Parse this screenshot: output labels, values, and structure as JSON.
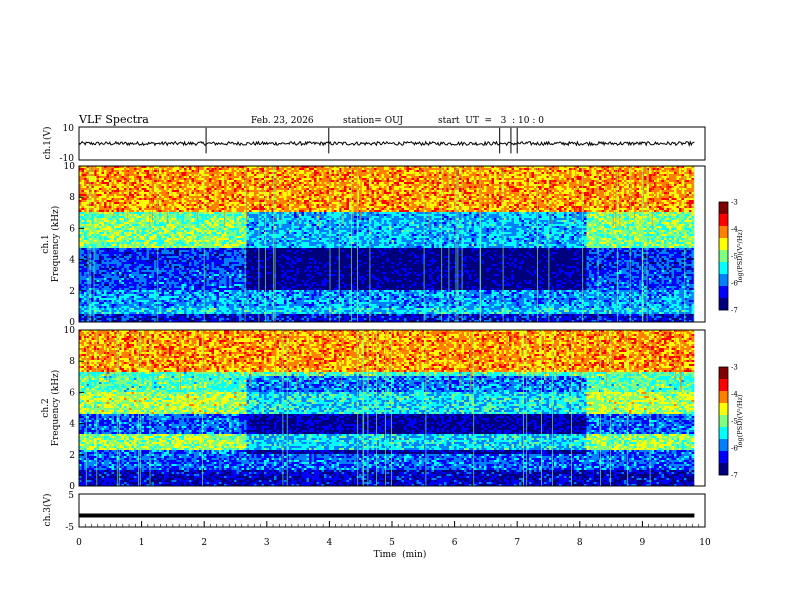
{
  "header": {
    "title": "VLF Spectra",
    "date": "Feb. 23, 2026",
    "station": "station= OUJ",
    "start": "start  UT  =   3  : 10 : 0"
  },
  "colors": {
    "spectrogram_colormap": [
      "#00007f",
      "#0000ff",
      "#007fff",
      "#00ffff",
      "#7fff7f",
      "#ffff00",
      "#ff7f00",
      "#ff0000",
      "#7f0000"
    ],
    "trace": "#000000"
  },
  "chart_data": [
    {
      "type": "line",
      "panel": "ch1-waveform",
      "ylabel": "ch.1(V)",
      "ylim": [
        -10,
        10
      ],
      "yticks": [
        "10",
        "-10"
      ],
      "xlim": [
        0,
        10
      ],
      "x": [
        0,
        1,
        2,
        3,
        4,
        5,
        6,
        7,
        8,
        9,
        9.83
      ],
      "y": [
        0,
        0,
        0,
        0,
        0,
        0,
        0,
        0,
        0,
        0,
        0
      ],
      "spike_times_min": [
        2.03,
        3.99,
        6.72,
        6.9,
        7.0
      ]
    },
    {
      "type": "heatmap",
      "panel": "ch1-spectrogram",
      "ylabel_line1": "ch.1",
      "ylabel_line2": "Frequency (kHz)",
      "ylim": [
        0,
        10
      ],
      "yticks": [
        "0",
        "2",
        "4",
        "6",
        "8",
        "10"
      ],
      "xlim": [
        0,
        10
      ],
      "data_end_min": 9.83,
      "segment_times_min": [
        0,
        2.67,
        8.1,
        9.83
      ],
      "colorbar": {
        "label": "log(PSD)(V²/Hz)",
        "range": [
          -7,
          -3
        ],
        "ticks": [
          "-3",
          "-4",
          "-5",
          "-6",
          "-7"
        ]
      },
      "bands_kHz": [
        {
          "f_low": 0,
          "f_high": 0.5,
          "level": -6.4
        },
        {
          "f_low": 0.5,
          "f_high": 0.9,
          "level": -5.6
        },
        {
          "f_low": 0.9,
          "f_high": 2.0,
          "level": -5.8
        },
        {
          "f_low": 2.0,
          "f_high": 3.3,
          "level": -6.1
        },
        {
          "f_low": 3.3,
          "f_high": 4.8,
          "level": -6.2
        },
        {
          "f_low": 4.8,
          "f_high": 7.0,
          "level": -5.0
        },
        {
          "f_low": 7.0,
          "f_high": 10.0,
          "level": -4.2
        }
      ]
    },
    {
      "type": "heatmap",
      "panel": "ch2-spectrogram",
      "ylabel_line1": "ch.2",
      "ylabel_line2": "Frequency (kHz)",
      "ylim": [
        0,
        10
      ],
      "yticks": [
        "0",
        "2",
        "4",
        "6",
        "8",
        "10"
      ],
      "xlim": [
        0,
        10
      ],
      "data_end_min": 9.83,
      "segment_times_min": [
        0,
        2.67,
        8.1,
        9.83
      ],
      "colorbar": {
        "label": "log(PSD)(V²/Hz)",
        "range": [
          -7,
          -3
        ],
        "ticks": [
          "-3",
          "-4",
          "-5",
          "-6",
          "-7"
        ]
      },
      "bands_kHz": [
        {
          "f_low": 0,
          "f_high": 1.0,
          "level": -6.5
        },
        {
          "f_low": 1.0,
          "f_high": 2.3,
          "level": -6.0
        },
        {
          "f_low": 2.3,
          "f_high": 3.3,
          "level": -4.9
        },
        {
          "f_low": 3.3,
          "f_high": 4.6,
          "level": -6.0
        },
        {
          "f_low": 4.6,
          "f_high": 6.0,
          "level": -4.8
        },
        {
          "f_low": 6.0,
          "f_high": 7.3,
          "level": -5.2
        },
        {
          "f_low": 7.3,
          "f_high": 10.0,
          "level": -4.2
        }
      ]
    },
    {
      "type": "line",
      "panel": "ch3-waveform",
      "ylabel": "ch.3(V)",
      "ylim": [
        -5,
        5
      ],
      "yticks": [
        "5",
        "-5"
      ],
      "xlim": [
        0,
        10
      ],
      "x": [
        0,
        9.83
      ],
      "y": [
        -1.5,
        -1.5
      ],
      "xlabel": "Time  (min)",
      "xticks": [
        "0",
        "1",
        "2",
        "3",
        "4",
        "5",
        "6",
        "7",
        "8",
        "9",
        "10"
      ]
    }
  ]
}
